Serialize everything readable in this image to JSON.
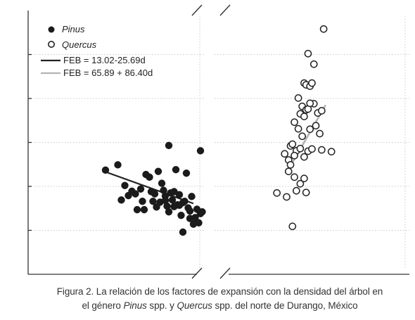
{
  "chart_data": {
    "type": "scatter",
    "title": "",
    "xlabel": "",
    "ylabel": "",
    "grid": true,
    "legend_placement": "top-left",
    "panels": [
      {
        "name": "left",
        "xlim": [
          0,
          1
        ],
        "ylim": [
          0,
          6
        ],
        "series": [
          {
            "name": "Pinus",
            "marker": "filled-circle",
            "points": [
              [
                0.44,
                2.37
              ],
              [
                0.51,
                2.49
              ],
              [
                0.55,
                2.02
              ],
              [
                0.53,
                1.69
              ],
              [
                0.57,
                1.79
              ],
              [
                0.59,
                1.89
              ],
              [
                0.61,
                1.83
              ],
              [
                0.62,
                1.47
              ],
              [
                0.64,
                1.94
              ],
              [
                0.65,
                1.66
              ],
              [
                0.66,
                1.47
              ],
              [
                0.67,
                2.27
              ],
              [
                0.69,
                2.21
              ],
              [
                0.7,
                1.88
              ],
              [
                0.71,
                1.66
              ],
              [
                0.72,
                1.83
              ],
              [
                0.73,
                1.53
              ],
              [
                0.75,
                1.64
              ],
              [
                0.76,
                2.07
              ],
              [
                0.77,
                1.91
              ],
              [
                0.78,
                1.78
              ],
              [
                0.79,
                1.55
              ],
              [
                0.8,
                1.42
              ],
              [
                0.81,
                1.85
              ],
              [
                0.82,
                1.69
              ],
              [
                0.83,
                1.88
              ],
              [
                0.84,
                2.38
              ],
              [
                0.85,
                1.58
              ],
              [
                0.86,
                1.81
              ],
              [
                0.87,
                1.34
              ],
              [
                0.88,
                1.63
              ],
              [
                0.89,
                1.66
              ],
              [
                0.9,
                2.3
              ],
              [
                0.91,
                1.51
              ],
              [
                0.92,
                1.44
              ],
              [
                0.93,
                1.77
              ],
              [
                0.94,
                1.14
              ],
              [
                0.95,
                1.29
              ],
              [
                0.96,
                1.48
              ],
              [
                0.97,
                1.17
              ],
              [
                0.98,
                1.38
              ],
              [
                0.98,
                2.81
              ],
              [
                0.99,
                1.42
              ],
              [
                0.8,
                2.93
              ],
              [
                0.74,
                2.34
              ],
              [
                0.88,
                0.96
              ],
              [
                0.83,
                1.54
              ],
              [
                0.78,
                1.68
              ],
              [
                0.92,
                1.27
              ],
              [
                0.86,
                1.57
              ]
            ]
          }
        ],
        "fit": {
          "name": "FEB = 13.02-25.69d",
          "x": [
            0.44,
            0.94
          ],
          "y": [
            2.33,
            1.61
          ]
        }
      },
      {
        "name": "right",
        "xlim": [
          0,
          1
        ],
        "ylim": [
          0,
          6
        ],
        "series": [
          {
            "name": "Quercus",
            "marker": "open-circle",
            "points": [
              [
                0.56,
                5.58
              ],
              [
                0.48,
                5.02
              ],
              [
                0.51,
                4.78
              ],
              [
                0.46,
                4.35
              ],
              [
                0.47,
                4.31
              ],
              [
                0.49,
                4.28
              ],
              [
                0.5,
                4.35
              ],
              [
                0.43,
                4.01
              ],
              [
                0.45,
                3.82
              ],
              [
                0.47,
                3.74
              ],
              [
                0.44,
                3.65
              ],
              [
                0.46,
                3.59
              ],
              [
                0.48,
                3.76
              ],
              [
                0.51,
                3.88
              ],
              [
                0.53,
                3.67
              ],
              [
                0.55,
                3.72
              ],
              [
                0.41,
                3.46
              ],
              [
                0.43,
                3.31
              ],
              [
                0.45,
                3.14
              ],
              [
                0.49,
                3.3
              ],
              [
                0.52,
                3.38
              ],
              [
                0.39,
                2.92
              ],
              [
                0.4,
                2.96
              ],
              [
                0.42,
                2.81
              ],
              [
                0.44,
                2.86
              ],
              [
                0.36,
                2.74
              ],
              [
                0.38,
                2.6
              ],
              [
                0.39,
                2.49
              ],
              [
                0.41,
                2.7
              ],
              [
                0.46,
                2.67
              ],
              [
                0.48,
                2.8
              ],
              [
                0.5,
                2.85
              ],
              [
                0.55,
                2.83
              ],
              [
                0.6,
                2.79
              ],
              [
                0.41,
                2.21
              ],
              [
                0.44,
                2.06
              ],
              [
                0.46,
                2.18
              ],
              [
                0.37,
                1.76
              ],
              [
                0.42,
                1.9
              ],
              [
                0.47,
                1.86
              ],
              [
                0.32,
                1.85
              ],
              [
                0.38,
                2.34
              ],
              [
                0.49,
                3.89
              ],
              [
                0.54,
                3.2
              ],
              [
                0.4,
                1.09
              ]
            ]
          }
        ],
        "fit": {
          "name": "FEB = 65.89 + 86.40d",
          "x": [
            0.37,
            0.57
          ],
          "y": [
            2.31,
            3.85
          ]
        }
      }
    ]
  },
  "legend": {
    "pinus": "Pinus",
    "quercus": "Quercus",
    "fit_pinus": "FEB = 13.02-25.69d",
    "fit_quercus": "FEB = 65.89 + 86.40d"
  },
  "caption": {
    "line1": "Figura 2. La relación de los factores de expansión con la densidad del árbol en",
    "line2_a": "el género ",
    "line2_b": "Pinus",
    "line2_c": " spp. y ",
    "line2_d": "Quercus",
    "line2_e": " spp. del norte de Durango, México"
  },
  "colors": {
    "pinus_fill": "#1b1b1b",
    "quercus_stroke": "#222222",
    "pinus_fit": "#222222",
    "quercus_fit": "#b3b3b3",
    "grid": "#c8c8c8",
    "axis": "#333333"
  }
}
